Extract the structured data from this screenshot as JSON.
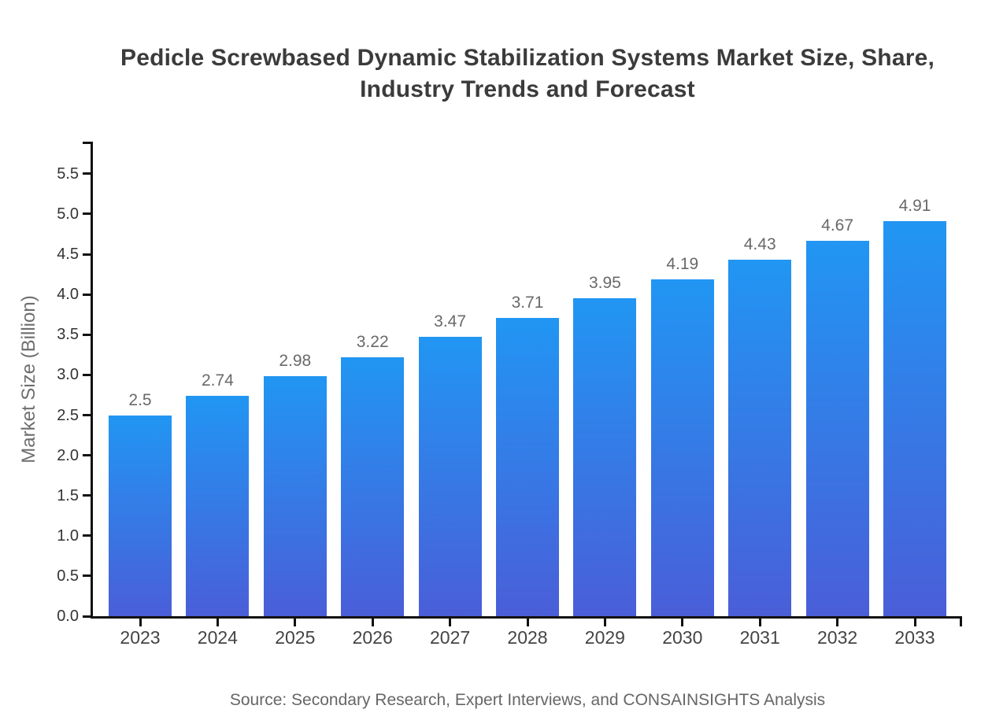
{
  "chart_data": {
    "type": "bar",
    "title": "Pedicle Screwbased Dynamic Stabilization Systems Market Size, Share, Industry Trends and Forecast",
    "title_lines": [
      "Pedicle Screwbased Dynamic Stabilization Systems Market Size, Share,",
      "Industry Trends and Forecast"
    ],
    "xlabel": "",
    "ylabel": "Market Size (Billion)",
    "categories": [
      "2023",
      "2024",
      "2025",
      "2026",
      "2027",
      "2028",
      "2029",
      "2030",
      "2031",
      "2032",
      "2033"
    ],
    "values": [
      2.5,
      2.74,
      2.98,
      3.22,
      3.47,
      3.71,
      3.95,
      4.19,
      4.43,
      4.67,
      4.91
    ],
    "value_labels": [
      "2.5",
      "2.74",
      "2.98",
      "3.22",
      "3.47",
      "3.71",
      "3.95",
      "4.19",
      "4.43",
      "4.67",
      "4.91"
    ],
    "ylim": [
      0,
      5.9
    ],
    "yticks": [
      0.0,
      0.5,
      1.0,
      1.5,
      2.0,
      2.5,
      3.0,
      3.5,
      4.0,
      4.5,
      5.0,
      5.5
    ],
    "ytick_labels": [
      "0.0",
      "0.5",
      "1.0",
      "1.5",
      "2.0",
      "2.5",
      "3.0",
      "3.5",
      "4.0",
      "4.5",
      "5.0",
      "5.5"
    ],
    "grid": false,
    "legend": null,
    "source_note": "Source: Secondary Research, Expert Interviews, and CONSAINSIGHTS Analysis",
    "colors": {
      "bar_gradient_top": "#2196F3",
      "bar_gradient_bottom": "#4A5ED8",
      "axis": "#111111",
      "title_text": "#3B3B3B",
      "tick_text": "#333333",
      "category_text": "#444444",
      "value_label_text": "#696969",
      "axis_label_text": "#6E6E6E",
      "source_text": "#666666",
      "background": "#FFFFFF"
    }
  }
}
